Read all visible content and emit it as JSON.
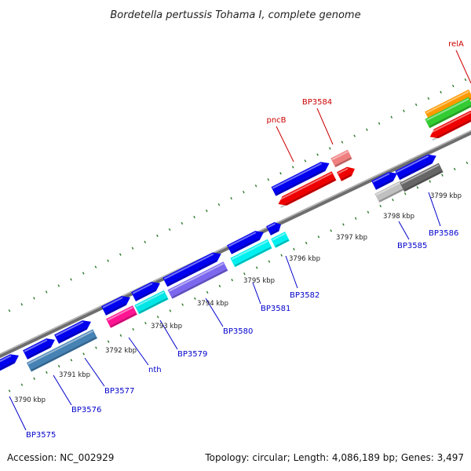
{
  "title": "Bordetella pertussis Tohama I, complete genome",
  "footer": {
    "accession": "Accession: NC_002929",
    "topology": "Topology: circular; Length: 4,086,189 bp; Genes: 3,497"
  },
  "colors": {
    "backbone": "#888888",
    "tick": "#2b7a2b",
    "label_blue": "#0000cc",
    "label_red": "#cc0000"
  },
  "kbp_labels": [
    "3790 kbp",
    "3791 kbp",
    "3792 kbp",
    "3793 kbp",
    "3794 kbp",
    "3795 kbp",
    "3796 kbp",
    "3797 kbp",
    "3798 kbp",
    "3799 kbp"
  ],
  "gene_labels": [
    "BP3575",
    "BP3576",
    "BP3577",
    "nth",
    "BP3579",
    "BP3580",
    "BP3581",
    "BP3582",
    "BP3585",
    "BP3586",
    "pncB",
    "BP3584",
    "relA"
  ]
}
